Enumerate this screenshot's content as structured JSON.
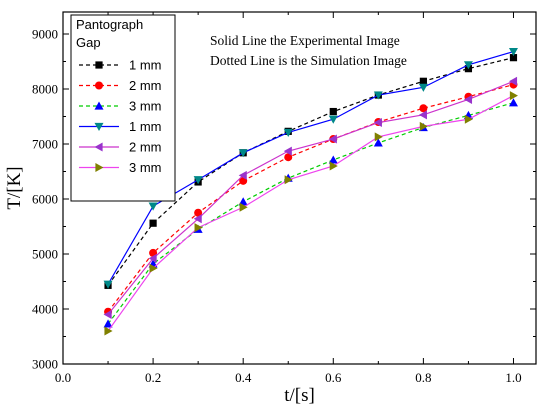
{
  "chart_data": {
    "type": "line",
    "xlabel": "t/[s]",
    "ylabel": "T/[K]",
    "xlim": [
      0.0,
      1.05
    ],
    "ylim": [
      3000,
      9400
    ],
    "x_ticks": [
      "0.0",
      "0.2",
      "0.4",
      "0.6",
      "0.8",
      "1.0"
    ],
    "y_ticks": [
      "3000",
      "4000",
      "5000",
      "6000",
      "7000",
      "8000",
      "9000"
    ],
    "grid": false,
    "legend": {
      "placement": "top-left",
      "title_line1": "Pantograph",
      "title_line2": "Gap"
    },
    "annotations": [
      "Solid Line the  Experimental Image",
      "Dotted Line is the Simulation Image"
    ],
    "x": [
      0.1,
      0.2,
      0.3,
      0.4,
      0.5,
      0.6,
      0.7,
      0.8,
      0.9,
      1.0
    ],
    "series": [
      {
        "name": "1 mm",
        "color": "#000000",
        "dash": "dashed",
        "marker": "square",
        "values": [
          4430,
          5560,
          6310,
          6840,
          7230,
          7590,
          7890,
          8140,
          8370,
          8570
        ]
      },
      {
        "name": "2 mm",
        "color": "#ff0000",
        "dash": "dashed",
        "marker": "circle",
        "values": [
          3950,
          5020,
          5750,
          6330,
          6760,
          7090,
          7400,
          7650,
          7860,
          8080
        ]
      },
      {
        "name": "3 mm",
        "color": "#00cc00",
        "dash": "dashed",
        "marker": "triangle-up",
        "values": [
          3730,
          4820,
          5450,
          5950,
          6380,
          6710,
          7020,
          7300,
          7520,
          7750
        ]
      },
      {
        "name": "1 mm",
        "color": "#0000ff",
        "dash": "solid",
        "marker": "triangle-down",
        "values": [
          4450,
          5870,
          6350,
          6840,
          7210,
          7450,
          7890,
          8030,
          8440,
          8680
        ]
      },
      {
        "name": "2 mm",
        "color": "#cc33cc",
        "dash": "solid",
        "marker": "triangle-left",
        "values": [
          3900,
          4920,
          5640,
          6430,
          6870,
          7090,
          7390,
          7530,
          7810,
          8140
        ]
      },
      {
        "name": "3 mm",
        "color": "#ee44ee",
        "dash": "solid",
        "marker": "triangle-right",
        "values": [
          3600,
          4740,
          5480,
          5850,
          6350,
          6600,
          7130,
          7320,
          7450,
          7880
        ]
      }
    ],
    "series_styles": {
      "marker_colors": [
        "#000000",
        "#ff0000",
        "#0000ff",
        "#008888",
        "#9933cc",
        "#808000"
      ],
      "line_colors": [
        "#000000",
        "#ff0000",
        "#00cc00",
        "#0000ff",
        "#cc33cc",
        "#ee44ee"
      ]
    }
  }
}
